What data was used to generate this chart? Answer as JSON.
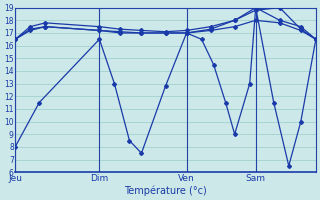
{
  "xlabel": "Température (°c)",
  "background_color": "#cce8e8",
  "grid_color": "#99cccc",
  "line_color": "#1a3aaa",
  "ylim": [
    6,
    19
  ],
  "xlim": [
    0,
    100
  ],
  "yticks": [
    6,
    7,
    8,
    9,
    10,
    11,
    12,
    13,
    14,
    15,
    16,
    17,
    18,
    19
  ],
  "day_labels": [
    "Jeu",
    "Dim",
    "Ven",
    "Sam"
  ],
  "day_positions": [
    0,
    28,
    57,
    80
  ],
  "s1_x": [
    0,
    5,
    10,
    28,
    35,
    42,
    50,
    57,
    65,
    73,
    80,
    88,
    95,
    100
  ],
  "s1_y": [
    16.5,
    17.3,
    17.5,
    17.2,
    17.1,
    17.0,
    17.0,
    17.0,
    17.2,
    17.5,
    18.0,
    17.8,
    17.2,
    16.5
  ],
  "s2_x": [
    0,
    5,
    10,
    28,
    35,
    42,
    50,
    57,
    65,
    73,
    80,
    88,
    95,
    100
  ],
  "s2_y": [
    16.5,
    17.5,
    17.8,
    17.5,
    17.3,
    17.2,
    17.1,
    17.2,
    17.5,
    18.0,
    19.0,
    18.0,
    17.5,
    16.5
  ],
  "s3_x": [
    0,
    5,
    10,
    28,
    35,
    42,
    50,
    57,
    65,
    73,
    80,
    88,
    95,
    100
  ],
  "s3_y": [
    16.5,
    17.2,
    17.5,
    17.2,
    17.0,
    17.0,
    17.0,
    17.0,
    17.3,
    18.0,
    18.8,
    19.0,
    17.3,
    16.5
  ],
  "s4_x": [
    0,
    8,
    28,
    33,
    38,
    42,
    50,
    57,
    62,
    66,
    70,
    73,
    78,
    80,
    86,
    91,
    95,
    100
  ],
  "s4_y": [
    8.0,
    11.5,
    16.5,
    13.0,
    8.5,
    7.5,
    12.8,
    17.0,
    16.5,
    14.5,
    11.5,
    9.0,
    13.0,
    19.0,
    11.5,
    6.5,
    10.0,
    16.5
  ]
}
